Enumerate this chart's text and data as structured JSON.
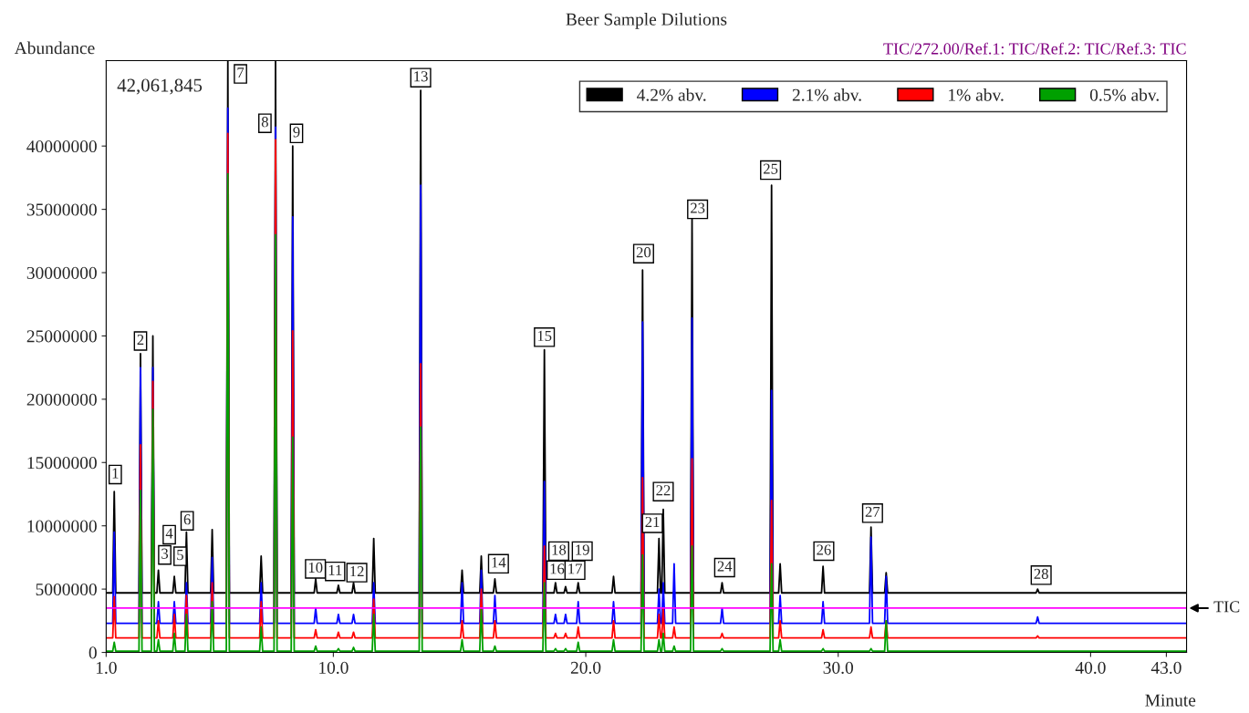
{
  "chart_data": {
    "type": "line",
    "title": "Beer Sample Dilutions",
    "xlabel": "Minute",
    "ylabel": "Abundance",
    "x": [
      1.0,
      1.26,
      1.32,
      1.38,
      2.3,
      2.36,
      2.42,
      2.79,
      2.85,
      2.91,
      3.01,
      3.07,
      3.13,
      3.64,
      3.7,
      3.76,
      4.12,
      4.18,
      4.24,
      5.14,
      5.2,
      5.26,
      5.76,
      5.82,
      5.88,
      7.08,
      7.14,
      7.2,
      7.65,
      7.71,
      7.77,
      8.33,
      8.39,
      8.45,
      9.24,
      9.3,
      9.36,
      10.14,
      10.2,
      10.26,
      10.74,
      10.8,
      10.86,
      11.54,
      11.6,
      11.66,
      13.4,
      13.46,
      13.52,
      15.04,
      15.1,
      15.16,
      15.8,
      15.86,
      15.92,
      16.34,
      16.4,
      16.46,
      18.3,
      18.36,
      18.42,
      18.74,
      18.8,
      18.86,
      19.14,
      19.2,
      19.26,
      19.64,
      19.7,
      19.76,
      21.04,
      21.1,
      21.16,
      22.19,
      22.25,
      22.31,
      22.84,
      22.9,
      22.96,
      23.01,
      23.07,
      23.13,
      23.44,
      23.5,
      23.56,
      24.15,
      24.21,
      24.27,
      25.34,
      25.4,
      25.46,
      27.3,
      27.36,
      27.42,
      27.64,
      27.7,
      27.76,
      29.34,
      29.4,
      29.46,
      31.24,
      31.3,
      31.36,
      31.84,
      31.9,
      31.96,
      37.84,
      37.9,
      37.96,
      43.8
    ],
    "series": [
      {
        "name": "4.2% abv.",
        "color": "#000000",
        "values": [
          4700000,
          4700000,
          12700000,
          4700000,
          4700000,
          23600000,
          4700000,
          4700000,
          25000000,
          4700000,
          4700000,
          6500000,
          4700000,
          4700000,
          6000000,
          4700000,
          4700000,
          9500000,
          4700000,
          4700000,
          9700000,
          4700000,
          4700000,
          46700000,
          4700000,
          4700000,
          7600000,
          4700000,
          4700000,
          46700000,
          4700000,
          4700000,
          40000000,
          4700000,
          4700000,
          5800000,
          4700000,
          4700000,
          5300000,
          4700000,
          4700000,
          5500000,
          4700000,
          4700000,
          9000000,
          4700000,
          4700000,
          44400000,
          4700000,
          4700000,
          6500000,
          4700000,
          4700000,
          7600000,
          4700000,
          4700000,
          5800000,
          4700000,
          4700000,
          23900000,
          4700000,
          4700000,
          5500000,
          4700000,
          4700000,
          5200000,
          4700000,
          4700000,
          5500000,
          4700000,
          4700000,
          6000000,
          4700000,
          4700000,
          30200000,
          4700000,
          4700000,
          9000000,
          4700000,
          4700000,
          11300000,
          4700000,
          4700000,
          null,
          4700000,
          4700000,
          34400000,
          4700000,
          4700000,
          5500000,
          4700000,
          4700000,
          36900000,
          4700000,
          4700000,
          7000000,
          4700000,
          4700000,
          6800000,
          4700000,
          4700000,
          9900000,
          4700000,
          4700000,
          6300000,
          4700000,
          4700000,
          5000000,
          4700000,
          4700000
        ]
      },
      {
        "name": "2.1% abv.",
        "color": "#0000ff",
        "values": [
          2300000,
          2300000,
          9500000,
          2300000,
          2300000,
          22500000,
          2300000,
          2300000,
          22500000,
          2300000,
          2300000,
          4000000,
          2300000,
          2300000,
          4000000,
          2300000,
          2300000,
          5500000,
          2300000,
          2300000,
          7500000,
          2300000,
          2300000,
          43000000,
          2300000,
          2300000,
          5500000,
          2300000,
          2300000,
          41500000,
          2300000,
          2300000,
          34400000,
          2300000,
          2300000,
          3500000,
          2300000,
          2300000,
          3000000,
          2300000,
          2300000,
          3000000,
          2300000,
          2300000,
          5500000,
          2300000,
          2300000,
          36900000,
          2300000,
          2300000,
          5500000,
          2300000,
          2300000,
          6500000,
          2300000,
          2300000,
          4500000,
          2300000,
          2300000,
          13500000,
          2300000,
          2300000,
          3000000,
          2300000,
          2300000,
          3000000,
          2300000,
          2300000,
          4000000,
          2300000,
          2300000,
          4000000,
          2300000,
          2300000,
          26100000,
          2300000,
          2300000,
          5000000,
          2300000,
          2300000,
          5500000,
          2300000,
          2300000,
          7000000,
          2300000,
          2300000,
          26400000,
          2300000,
          2300000,
          3500000,
          2300000,
          2300000,
          20700000,
          2300000,
          2300000,
          4500000,
          2300000,
          2300000,
          4000000,
          2300000,
          2300000,
          9100000,
          2300000,
          2300000,
          6000000,
          2300000,
          2300000,
          2800000,
          2300000,
          2300000
        ]
      },
      {
        "name": "1% abv.",
        "color": "#ff0000",
        "values": [
          1150000,
          1150000,
          4400000,
          1150000,
          1150000,
          16400000,
          1150000,
          1150000,
          21400000,
          1150000,
          1150000,
          2500000,
          1150000,
          1150000,
          3000000,
          1150000,
          1150000,
          4500000,
          1150000,
          1150000,
          5500000,
          1150000,
          1150000,
          41000000,
          1150000,
          1150000,
          4000000,
          1150000,
          1150000,
          40500000,
          1150000,
          1150000,
          25400000,
          1150000,
          1150000,
          1800000,
          1150000,
          1150000,
          1600000,
          1150000,
          1150000,
          1600000,
          1150000,
          1150000,
          4200000,
          1150000,
          1150000,
          22800000,
          1150000,
          1150000,
          2500000,
          1150000,
          1150000,
          5000000,
          1150000,
          1150000,
          2500000,
          1150000,
          1150000,
          8400000,
          1150000,
          1150000,
          1500000,
          1150000,
          1150000,
          1500000,
          1150000,
          1150000,
          2000000,
          1150000,
          1150000,
          2500000,
          1150000,
          1150000,
          13800000,
          1150000,
          1150000,
          3000000,
          1150000,
          1150000,
          3500000,
          1150000,
          1150000,
          2000000,
          1150000,
          1150000,
          15300000,
          1150000,
          1150000,
          1500000,
          1150000,
          1150000,
          12000000,
          1150000,
          1150000,
          2500000,
          1150000,
          1150000,
          1800000,
          1150000,
          1150000,
          2000000,
          1150000,
          1150000,
          2500000,
          1150000,
          1150000,
          1300000,
          1150000,
          1150000
        ]
      },
      {
        "name": "0.5% abv.",
        "color": "#00a000",
        "values": [
          100000,
          100000,
          800000,
          100000,
          100000,
          12800000,
          100000,
          100000,
          19200000,
          100000,
          100000,
          1000000,
          100000,
          100000,
          1500000,
          100000,
          100000,
          3000000,
          100000,
          100000,
          4000000,
          100000,
          100000,
          37800000,
          100000,
          100000,
          2000000,
          100000,
          100000,
          33000000,
          100000,
          100000,
          17000000,
          100000,
          100000,
          500000,
          100000,
          100000,
          300000,
          100000,
          100000,
          400000,
          100000,
          100000,
          3000000,
          100000,
          100000,
          17800000,
          100000,
          100000,
          1000000,
          100000,
          100000,
          3500000,
          100000,
          100000,
          500000,
          100000,
          100000,
          5500000,
          100000,
          100000,
          300000,
          100000,
          100000,
          300000,
          100000,
          100000,
          800000,
          100000,
          100000,
          1000000,
          100000,
          100000,
          7700000,
          100000,
          100000,
          1000000,
          100000,
          100000,
          1500000,
          100000,
          100000,
          500000,
          100000,
          100000,
          8400000,
          100000,
          100000,
          300000,
          100000,
          100000,
          7000000,
          100000,
          100000,
          1000000,
          100000,
          100000,
          300000,
          100000,
          100000,
          300000,
          100000,
          100000,
          2500000,
          100000,
          100000,
          100000,
          100000,
          100000
        ]
      },
      {
        "color": "#ff00ff",
        "x": [
          1.0,
          43.8
        ],
        "values": [
          3500000,
          3500000
        ]
      }
    ],
    "xlim": [
      1.0,
      43.8
    ],
    "xticks": [
      {
        "value": 1.0,
        "label": "1.0"
      },
      {
        "value": 10.0,
        "label": "10.0"
      },
      {
        "value": 20.0,
        "label": "20.0"
      },
      {
        "value": 30.0,
        "label": "30.0"
      },
      {
        "value": 40.0,
        "label": "40.0"
      },
      {
        "value": 43.0,
        "label": "43.0"
      }
    ],
    "ylim": [
      0,
      46750000
    ],
    "yticks": [
      0,
      5000000,
      10000000,
      15000000,
      20000000,
      25000000,
      30000000,
      35000000,
      40000000
    ],
    "legend": "top right",
    "line_style": "solid",
    "marker": "none",
    "grid": false,
    "annotations": [
      "42,061,845",
      "TIC/272.00/Ref.1: TIC/Ref.2: TIC/Ref.3: TIC",
      "TIC",
      {
        "text": "1",
        "x": 1.36,
        "y": 14050000
      },
      {
        "text": "2",
        "x": 2.36,
        "y": 24600000
      },
      {
        "text": "3",
        "x": 3.32,
        "y": 7700000
      },
      {
        "text": "4",
        "x": 3.5,
        "y": 9300000
      },
      {
        "text": "5",
        "x": 3.93,
        "y": 7600000
      },
      {
        "text": "6",
        "x": 4.21,
        "y": 10400000
      },
      {
        "text": "7",
        "x": 6.32,
        "y": 45700000
      },
      {
        "text": "8",
        "x": 7.29,
        "y": 41800000
      },
      {
        "text": "9",
        "x": 8.54,
        "y": 41000000
      },
      {
        "text": "10",
        "x": 9.29,
        "y": 6600000
      },
      {
        "text": "11",
        "x": 10.07,
        "y": 6400000
      },
      {
        "text": "12",
        "x": 10.93,
        "y": 6300000
      },
      {
        "text": "13",
        "x": 13.46,
        "y": 45400000
      },
      {
        "text": "14",
        "x": 16.54,
        "y": 7000000
      },
      {
        "text": "15",
        "x": 18.36,
        "y": 24900000
      },
      {
        "text": "16",
        "x": 18.86,
        "y": 6500000
      },
      {
        "text": "17",
        "x": 19.57,
        "y": 6500000
      },
      {
        "text": "18",
        "x": 18.93,
        "y": 8000000
      },
      {
        "text": "19",
        "x": 19.86,
        "y": 8000000
      },
      {
        "text": "20",
        "x": 22.29,
        "y": 31500000
      },
      {
        "text": "21",
        "x": 22.64,
        "y": 10200000
      },
      {
        "text": "22",
        "x": 23.07,
        "y": 12700000
      },
      {
        "text": "23",
        "x": 24.43,
        "y": 35000000
      },
      {
        "text": "24",
        "x": 25.5,
        "y": 6700000
      },
      {
        "text": "25",
        "x": 27.32,
        "y": 38100000
      },
      {
        "text": "26",
        "x": 29.43,
        "y": 8000000
      },
      {
        "text": "27",
        "x": 31.36,
        "y": 11000000
      },
      {
        "text": "28",
        "x": 38.04,
        "y": 6100000
      }
    ]
  }
}
